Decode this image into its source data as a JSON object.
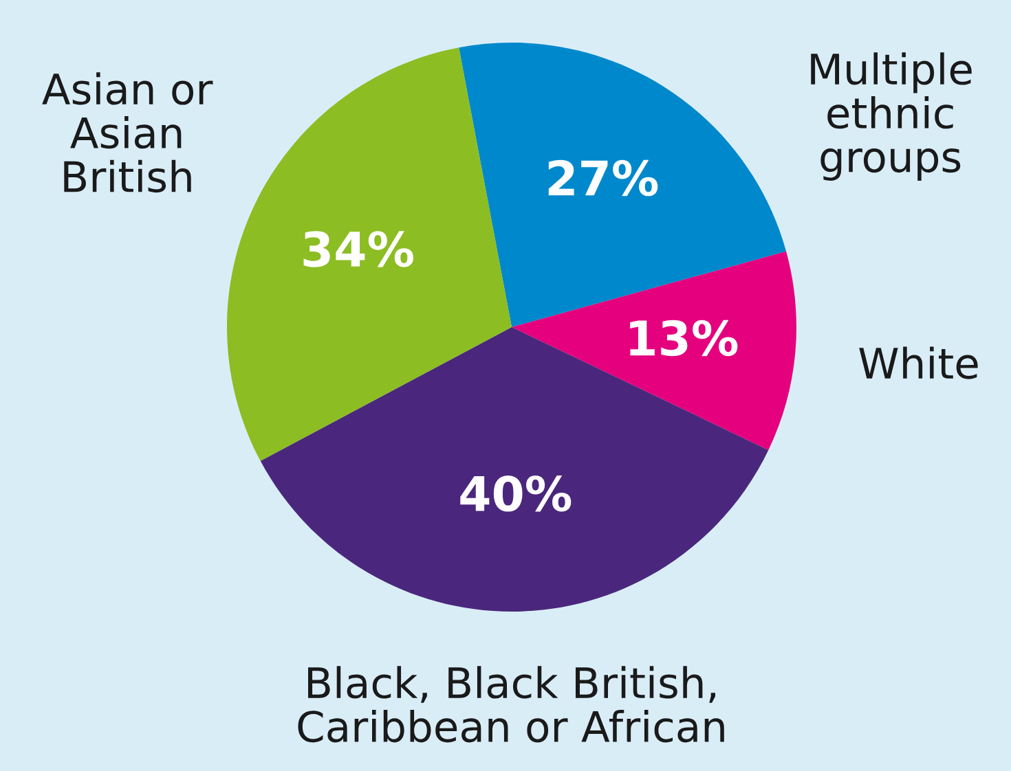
{
  "chart_data": {
    "type": "pie",
    "categories": [
      "Multiple\nethnic\ngroups",
      "White",
      "Black, Black British,\nCaribbean or African",
      "Asian or\nAsian\nBritish"
    ],
    "values": [
      27,
      13,
      40,
      34
    ],
    "value_labels": [
      "27%",
      "13%",
      "40%",
      "34%"
    ],
    "colors": [
      "#0088cc",
      "#e5007e",
      "#4a277c",
      "#8cbd22"
    ]
  }
}
